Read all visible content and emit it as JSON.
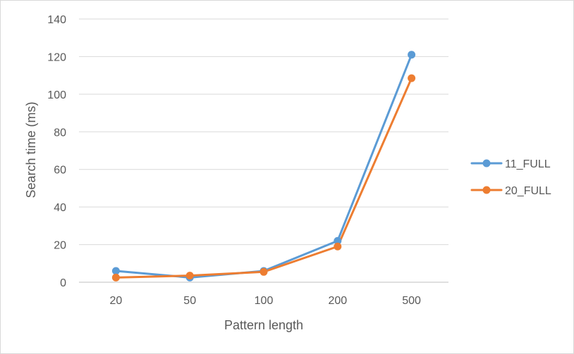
{
  "chart_data": {
    "type": "line",
    "title": "",
    "xlabel": "Pattern length",
    "ylabel": "Search time (ms)",
    "categories": [
      "20",
      "50",
      "100",
      "200",
      "500"
    ],
    "ylim": [
      0,
      140
    ],
    "yticks": [
      0,
      20,
      40,
      60,
      80,
      100,
      120,
      140
    ],
    "ytick_labels": [
      "0",
      "20",
      "40",
      "60",
      "80",
      "100",
      "120",
      "140"
    ],
    "grid": true,
    "legend_position": "right",
    "series": [
      {
        "name": "11_FULL",
        "color": "#5B9BD5",
        "values": [
          6,
          2.5,
          6,
          22,
          121
        ]
      },
      {
        "name": "20_FULL",
        "color": "#ED7D31",
        "values": [
          2.5,
          3.5,
          5.5,
          19,
          108.5
        ]
      }
    ]
  }
}
